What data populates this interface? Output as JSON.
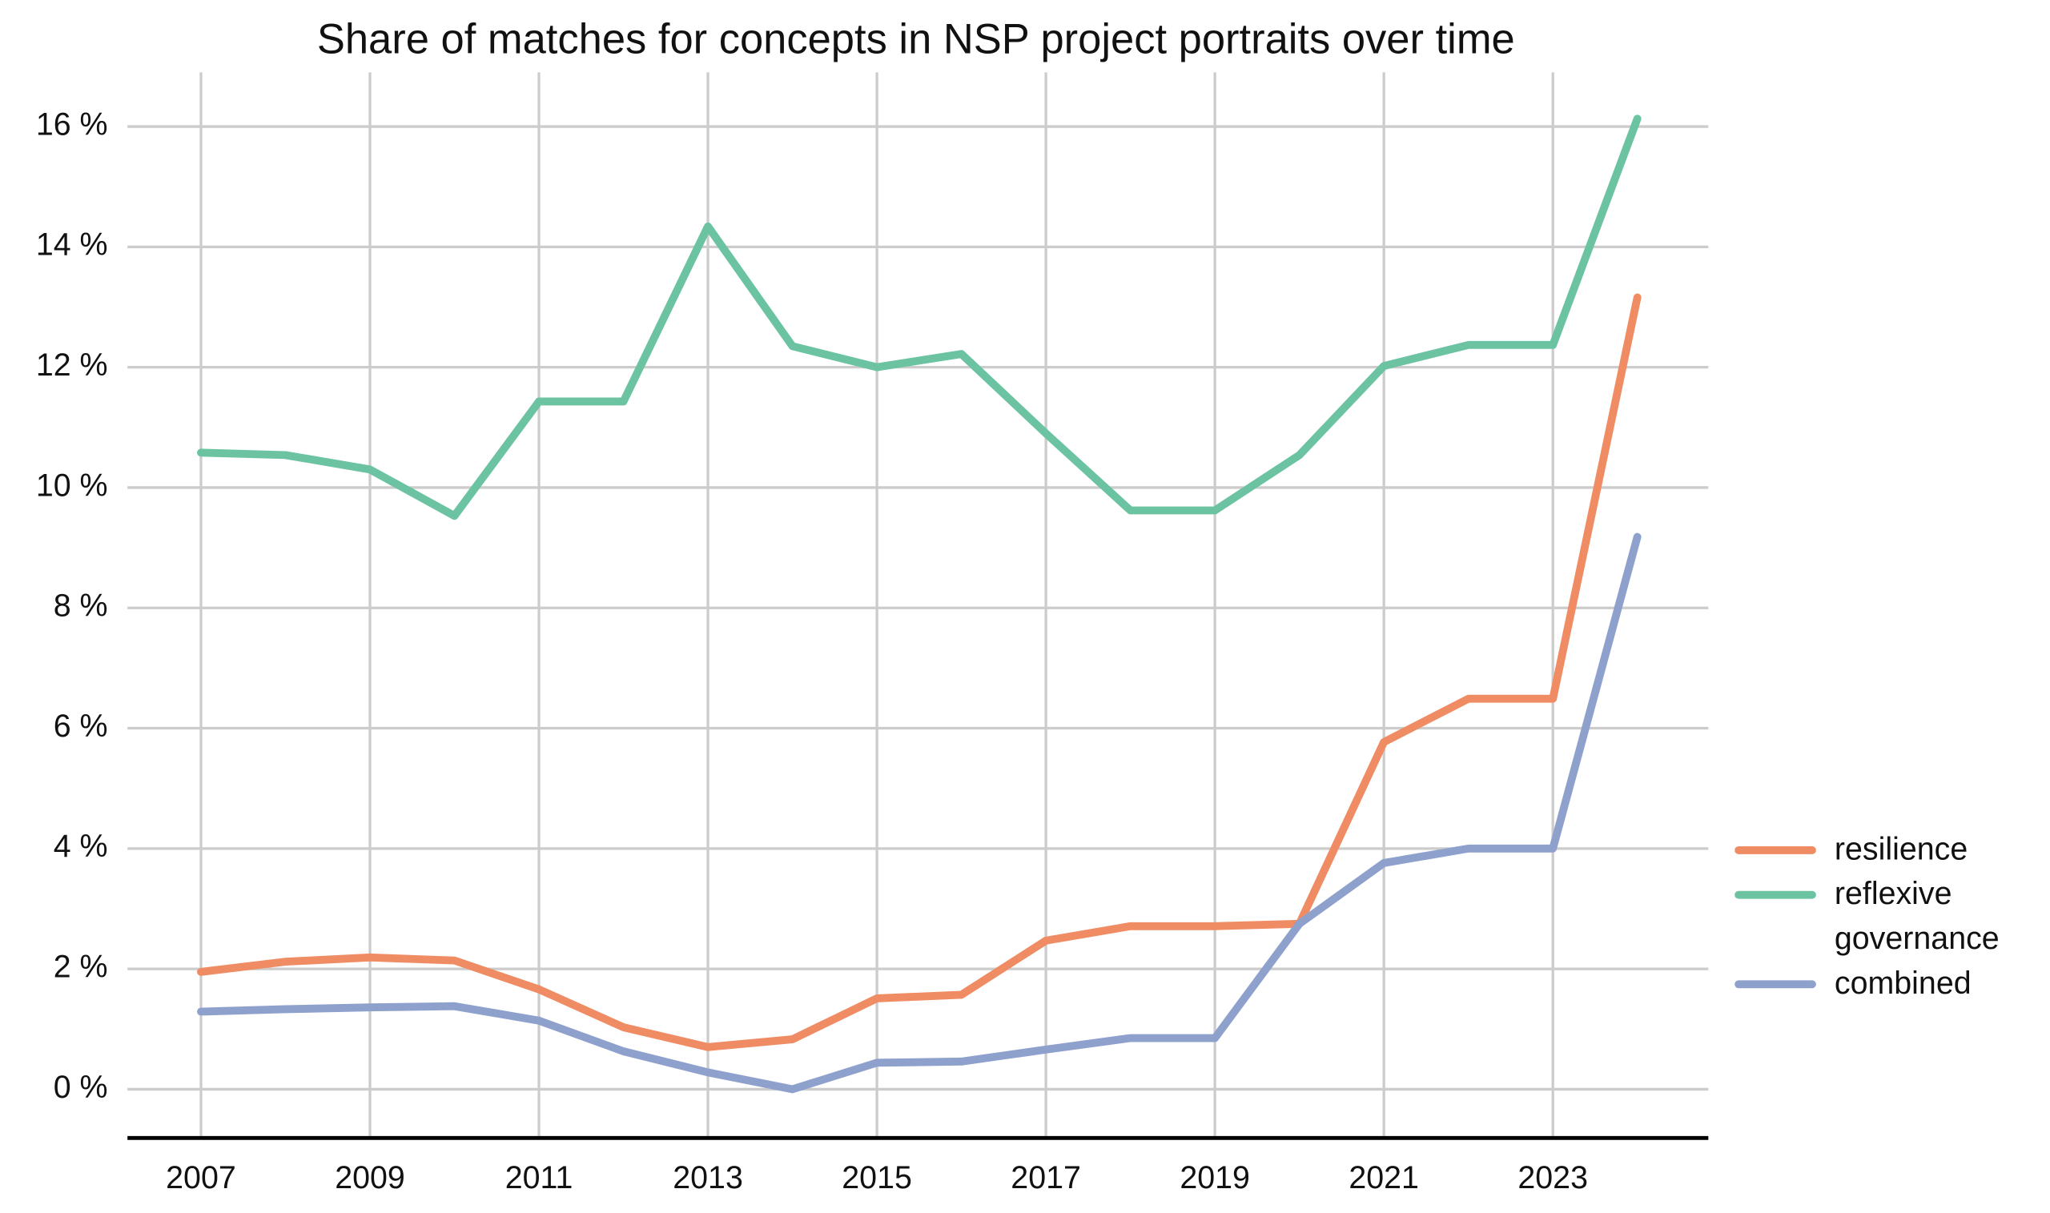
{
  "chart_data": {
    "type": "line",
    "title": "Share of matches for concepts in NSP project portraits over time",
    "x": [
      2007,
      2008,
      2009,
      2010,
      2011,
      2012,
      2013,
      2014,
      2015,
      2016,
      2017,
      2018,
      2019,
      2020,
      2021,
      2022,
      2023,
      2024
    ],
    "series": [
      {
        "name": "resilience",
        "color": "#f08c64",
        "values": [
          1.95,
          2.12,
          2.19,
          2.14,
          1.66,
          1.03,
          0.7,
          0.83,
          1.51,
          1.57,
          2.47,
          2.71,
          2.71,
          2.75,
          5.77,
          6.49,
          6.49,
          13.16
        ]
      },
      {
        "name": "reflexive governance",
        "color": "#6cc3a2",
        "values": [
          10.58,
          10.54,
          10.3,
          9.53,
          11.43,
          11.43,
          14.34,
          12.35,
          12.0,
          12.22,
          10.9,
          9.62,
          9.62,
          10.54,
          12.02,
          12.37,
          12.37,
          16.13
        ]
      },
      {
        "name": "combined",
        "color": "#8ea0cc",
        "values": [
          1.29,
          1.33,
          1.36,
          1.38,
          1.14,
          0.63,
          0.28,
          0,
          0.44,
          0.46,
          0.66,
          0.85,
          0.85,
          2.75,
          3.76,
          4.0,
          4.0,
          9.18
        ]
      }
    ],
    "xlim": [
      2006.13,
      2024.84
    ],
    "xticks": [
      2007,
      2009,
      2011,
      2013,
      2015,
      2017,
      2019,
      2021,
      2023
    ],
    "ylim": [
      -0.81,
      16.9
    ],
    "yticks": [
      {
        "value": 0,
        "label": "0 %"
      },
      {
        "value": 2,
        "label": "2 %"
      },
      {
        "value": 4,
        "label": "4 %"
      },
      {
        "value": 6,
        "label": "6 %"
      },
      {
        "value": 8,
        "label": "8 %"
      },
      {
        "value": 10,
        "label": "10 %"
      },
      {
        "value": 12,
        "label": "12 %"
      },
      {
        "value": 14,
        "label": "14 %"
      },
      {
        "value": 16,
        "label": "16 %"
      }
    ],
    "grid": true,
    "legend": "right"
  }
}
